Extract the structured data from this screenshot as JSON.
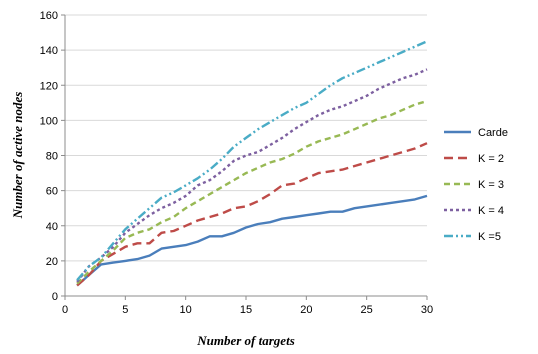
{
  "chart_data": {
    "type": "line",
    "title": "",
    "xlabel": "Number of targets",
    "ylabel": "Number of active nodes",
    "xlim": [
      0,
      30
    ],
    "ylim": [
      0,
      160
    ],
    "xticks": [
      0,
      5,
      10,
      15,
      20,
      25,
      30
    ],
    "yticks": [
      0,
      20,
      40,
      60,
      80,
      100,
      120,
      140,
      160
    ],
    "grid": true,
    "legend_position": "right",
    "x": [
      1,
      2,
      3,
      4,
      5,
      6,
      7,
      8,
      9,
      10,
      11,
      12,
      13,
      14,
      15,
      16,
      17,
      18,
      19,
      20,
      21,
      22,
      23,
      24,
      25,
      26,
      27,
      28,
      29,
      30
    ],
    "series": [
      {
        "name": "Carde",
        "color": "#4a7ebb",
        "dash": "solid",
        "values": [
          6,
          12,
          18,
          19,
          20,
          21,
          23,
          27,
          28,
          29,
          31,
          34,
          34,
          36,
          39,
          41,
          42,
          44,
          45,
          46,
          47,
          48,
          48,
          50,
          51,
          52,
          53,
          54,
          55,
          57
        ]
      },
      {
        "name": "K = 2",
        "color": "#be4b48",
        "dash": "long-dash",
        "values": [
          6,
          12,
          20,
          24,
          28,
          30,
          30,
          36,
          37,
          40,
          43,
          45,
          47,
          50,
          51,
          54,
          58,
          63,
          64,
          67,
          70,
          71,
          72,
          74,
          76,
          78,
          80,
          82,
          84,
          87
        ]
      },
      {
        "name": "K = 3",
        "color": "#98b954",
        "dash": "dash",
        "values": [
          7,
          14,
          20,
          26,
          33,
          36,
          38,
          42,
          45,
          50,
          54,
          58,
          62,
          66,
          70,
          73,
          76,
          78,
          81,
          85,
          88,
          90,
          92,
          95,
          98,
          101,
          103,
          106,
          109,
          111
        ]
      },
      {
        "name": "K = 4",
        "color": "#7d60a0",
        "dash": "dot",
        "values": [
          8,
          17,
          22,
          28,
          36,
          41,
          46,
          50,
          53,
          57,
          63,
          66,
          71,
          77,
          80,
          82,
          86,
          90,
          95,
          99,
          103,
          106,
          108,
          111,
          114,
          118,
          121,
          124,
          126,
          129
        ]
      },
      {
        "name": "K =5",
        "color": "#4aacc6",
        "dash": "dash-dot-dot",
        "values": [
          9,
          17,
          22,
          30,
          38,
          44,
          50,
          56,
          59,
          63,
          67,
          72,
          78,
          85,
          90,
          95,
          99,
          103,
          107,
          110,
          115,
          120,
          124,
          127,
          130,
          133,
          136,
          139,
          142,
          145
        ]
      }
    ]
  }
}
